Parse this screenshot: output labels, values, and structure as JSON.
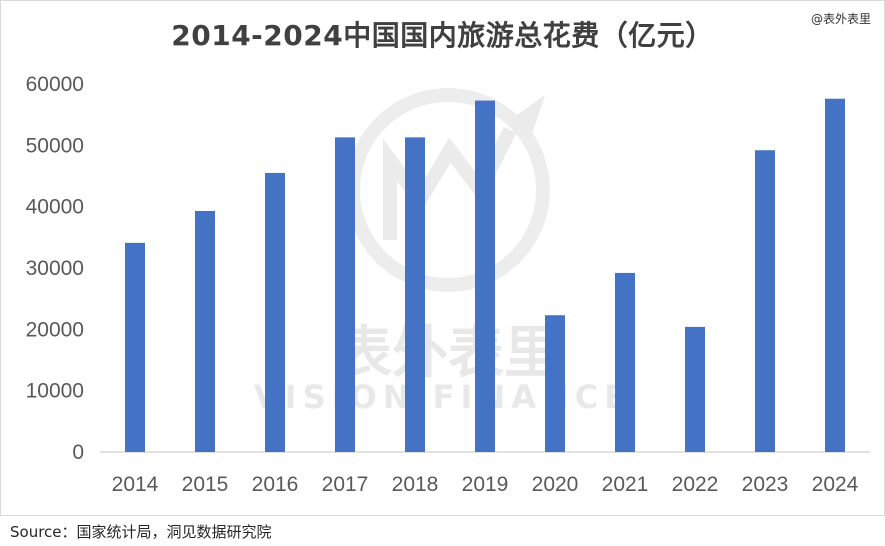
{
  "header": {
    "title": "2014-2024中国国内旅游总花费（亿元）",
    "watermark_handle": "@表外表里"
  },
  "footer": {
    "source": "Source：国家统计局，洞见数据研究院"
  },
  "background_watermark": {
    "cn": "表外表里",
    "en": "VISION FINANCE"
  },
  "colors": {
    "bar": "#4472c4",
    "axis": "#d9d9d9",
    "tick_text": "#595959"
  },
  "chart_data": {
    "type": "bar",
    "title": "2014-2024中国国内旅游总花费（亿元）",
    "categories": [
      "2014",
      "2015",
      "2016",
      "2017",
      "2018",
      "2019",
      "2020",
      "2021",
      "2022",
      "2023",
      "2024"
    ],
    "values": [
      34100,
      39300,
      45500,
      51300,
      51300,
      57300,
      22300,
      29200,
      20400,
      49200,
      57600
    ],
    "ylim": [
      0,
      60000
    ],
    "yticks": [
      "0",
      "10000",
      "20000",
      "30000",
      "40000",
      "50000",
      "60000"
    ],
    "grid": false,
    "legend": "none"
  }
}
